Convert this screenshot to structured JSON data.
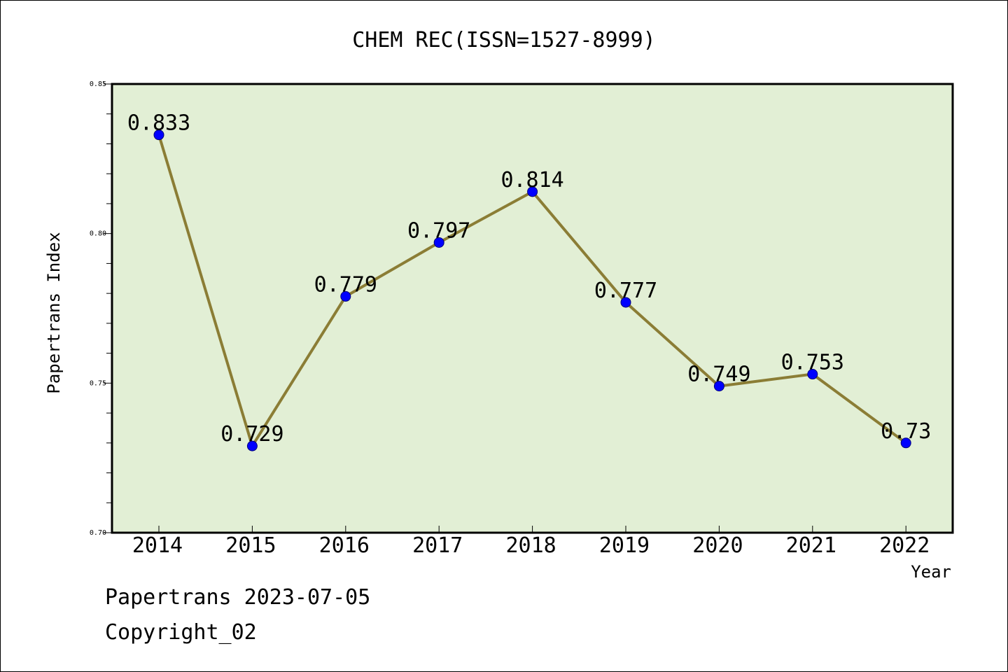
{
  "chart_data": {
    "type": "line",
    "title": "CHEM REC(ISSN=1527-8999)",
    "xlabel": "Year",
    "ylabel": "Papertrans Index",
    "categories": [
      "2014",
      "2015",
      "2016",
      "2017",
      "2018",
      "2019",
      "2020",
      "2021",
      "2022"
    ],
    "series": [
      {
        "values": [
          0.833,
          0.729,
          0.779,
          0.797,
          0.814,
          0.777,
          0.749,
          0.753,
          0.73
        ],
        "labels": [
          "0.833",
          "0.729",
          "0.779",
          "0.797",
          "0.814",
          "0.777",
          "0.749",
          "0.753",
          "0.73"
        ]
      }
    ],
    "ylim": [
      0.7,
      0.85
    ],
    "yticks": [
      "0.70",
      "0.75",
      "0.80",
      "0.85"
    ],
    "grid": false,
    "legend": "none",
    "colors": {
      "plot_background": "#e2efd5",
      "line": "#8b7d35",
      "marker": "#0000ff",
      "marker_edge": "#00007a"
    }
  },
  "footer": {
    "line1": "Papertrans 2023-07-05",
    "line2": "Copyright_02"
  }
}
